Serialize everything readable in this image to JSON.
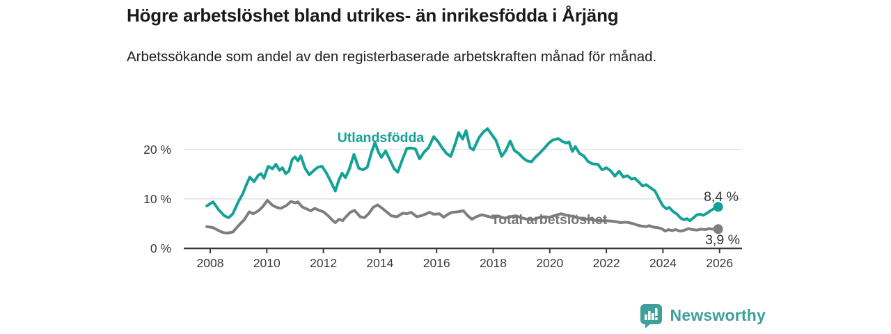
{
  "chart_data": {
    "type": "line",
    "title": "Högre arbetslöshet bland utrikes- än inrikesfödda i Årjäng",
    "subtitle": "Arbetssökande som andel av den registerbaserade arbetskraften månad för månad.",
    "xlabel": "",
    "ylabel": "",
    "unit": "%",
    "grid": "horizontal",
    "legend_position": "inline-labels",
    "x_axis": {
      "range": [
        2007.05,
        2026.8
      ],
      "ticks": [
        {
          "value": 2008,
          "label": "2008"
        },
        {
          "value": 2010,
          "label": "2010"
        },
        {
          "value": 2012,
          "label": "2012"
        },
        {
          "value": 2014,
          "label": "2014"
        },
        {
          "value": 2016,
          "label": "2016"
        },
        {
          "value": 2018,
          "label": "2018"
        },
        {
          "value": 2020,
          "label": "2020"
        },
        {
          "value": 2022,
          "label": "2022"
        },
        {
          "value": 2024,
          "label": "2024"
        },
        {
          "value": 2026,
          "label": "2026"
        }
      ]
    },
    "y_axis": {
      "range": [
        0,
        26.5
      ],
      "ticks": [
        {
          "value": 0,
          "label": "0 %"
        },
        {
          "value": 10,
          "label": "10 %"
        },
        {
          "value": 20,
          "label": "20 %"
        }
      ]
    },
    "series": [
      {
        "name": "Utlandsfödda",
        "color": "#14a296",
        "label_color": "#14a296",
        "end_label": "8,4 %",
        "end_value": 8.4,
        "points": [
          [
            2007.88,
            8.6
          ],
          [
            2008.1,
            9.4
          ],
          [
            2008.3,
            7.8
          ],
          [
            2008.5,
            6.6
          ],
          [
            2008.65,
            6.2
          ],
          [
            2008.8,
            7.0
          ],
          [
            2009.0,
            9.5
          ],
          [
            2009.15,
            11.0
          ],
          [
            2009.28,
            12.9
          ],
          [
            2009.4,
            14.4
          ],
          [
            2009.55,
            13.5
          ],
          [
            2009.7,
            14.8
          ],
          [
            2009.8,
            15.1
          ],
          [
            2009.9,
            14.2
          ],
          [
            2010.05,
            16.6
          ],
          [
            2010.2,
            16.1
          ],
          [
            2010.32,
            17.0
          ],
          [
            2010.45,
            15.8
          ],
          [
            2010.55,
            16.3
          ],
          [
            2010.67,
            15.1
          ],
          [
            2010.78,
            15.6
          ],
          [
            2010.9,
            18.0
          ],
          [
            2011.0,
            18.5
          ],
          [
            2011.1,
            17.7
          ],
          [
            2011.2,
            18.7
          ],
          [
            2011.35,
            16.2
          ],
          [
            2011.5,
            14.9
          ],
          [
            2011.65,
            15.7
          ],
          [
            2011.8,
            16.4
          ],
          [
            2011.95,
            16.6
          ],
          [
            2012.1,
            15.3
          ],
          [
            2012.27,
            13.4
          ],
          [
            2012.42,
            11.6
          ],
          [
            2012.55,
            13.9
          ],
          [
            2012.66,
            15.2
          ],
          [
            2012.78,
            14.3
          ],
          [
            2012.92,
            16.1
          ],
          [
            2013.08,
            19.0
          ],
          [
            2013.25,
            16.2
          ],
          [
            2013.4,
            15.9
          ],
          [
            2013.55,
            16.4
          ],
          [
            2013.7,
            19.4
          ],
          [
            2013.82,
            21.4
          ],
          [
            2013.95,
            19.4
          ],
          [
            2014.05,
            18.4
          ],
          [
            2014.2,
            19.7
          ],
          [
            2014.35,
            17.9
          ],
          [
            2014.5,
            16.1
          ],
          [
            2014.63,
            15.4
          ],
          [
            2014.8,
            18.1
          ],
          [
            2014.95,
            20.2
          ],
          [
            2015.1,
            20.3
          ],
          [
            2015.25,
            20.1
          ],
          [
            2015.4,
            18.1
          ],
          [
            2015.55,
            19.4
          ],
          [
            2015.72,
            20.4
          ],
          [
            2015.9,
            22.6
          ],
          [
            2016.05,
            21.6
          ],
          [
            2016.2,
            20.3
          ],
          [
            2016.35,
            19.2
          ],
          [
            2016.5,
            18.6
          ],
          [
            2016.65,
            21.0
          ],
          [
            2016.78,
            23.4
          ],
          [
            2016.92,
            22.1
          ],
          [
            2017.04,
            23.8
          ],
          [
            2017.18,
            20.4
          ],
          [
            2017.3,
            19.9
          ],
          [
            2017.5,
            22.4
          ],
          [
            2017.65,
            23.5
          ],
          [
            2017.8,
            24.2
          ],
          [
            2017.95,
            23.0
          ],
          [
            2018.1,
            21.8
          ],
          [
            2018.3,
            18.6
          ],
          [
            2018.45,
            19.8
          ],
          [
            2018.6,
            21.7
          ],
          [
            2018.75,
            19.8
          ],
          [
            2018.9,
            19.2
          ],
          [
            2019.05,
            18.3
          ],
          [
            2019.2,
            17.7
          ],
          [
            2019.35,
            17.5
          ],
          [
            2019.5,
            18.5
          ],
          [
            2019.65,
            19.3
          ],
          [
            2019.8,
            20.2
          ],
          [
            2019.95,
            21.2
          ],
          [
            2020.1,
            21.9
          ],
          [
            2020.3,
            22.2
          ],
          [
            2020.45,
            21.6
          ],
          [
            2020.58,
            21.3
          ],
          [
            2020.68,
            21.5
          ],
          [
            2020.8,
            19.6
          ],
          [
            2020.9,
            20.6
          ],
          [
            2021.05,
            19.2
          ],
          [
            2021.2,
            18.7
          ],
          [
            2021.35,
            17.6
          ],
          [
            2021.5,
            17.1
          ],
          [
            2021.7,
            17.0
          ],
          [
            2021.85,
            15.9
          ],
          [
            2022.0,
            16.3
          ],
          [
            2022.15,
            15.7
          ],
          [
            2022.3,
            14.6
          ],
          [
            2022.45,
            15.6
          ],
          [
            2022.6,
            14.4
          ],
          [
            2022.74,
            14.7
          ],
          [
            2022.9,
            14.0
          ],
          [
            2023.0,
            14.2
          ],
          [
            2023.15,
            13.4
          ],
          [
            2023.28,
            12.6
          ],
          [
            2023.4,
            12.9
          ],
          [
            2023.55,
            12.3
          ],
          [
            2023.72,
            11.6
          ],
          [
            2023.88,
            9.8
          ],
          [
            2024.0,
            8.6
          ],
          [
            2024.12,
            8.0
          ],
          [
            2024.22,
            8.3
          ],
          [
            2024.35,
            7.5
          ],
          [
            2024.5,
            6.9
          ],
          [
            2024.63,
            6.1
          ],
          [
            2024.75,
            5.8
          ],
          [
            2024.85,
            6.0
          ],
          [
            2024.95,
            5.6
          ],
          [
            2025.08,
            6.2
          ],
          [
            2025.2,
            6.8
          ],
          [
            2025.32,
            6.9
          ],
          [
            2025.42,
            6.7
          ],
          [
            2025.55,
            7.1
          ],
          [
            2025.7,
            7.7
          ],
          [
            2025.85,
            8.2
          ],
          [
            2025.95,
            8.4
          ]
        ]
      },
      {
        "name": "Total arbetslöshet",
        "color": "#7e7e7e",
        "label_color": "#767676",
        "end_label": "3,9 %",
        "end_value": 3.9,
        "points": [
          [
            2007.88,
            4.4
          ],
          [
            2008.1,
            4.2
          ],
          [
            2008.3,
            3.6
          ],
          [
            2008.45,
            3.2
          ],
          [
            2008.6,
            3.1
          ],
          [
            2008.8,
            3.3
          ],
          [
            2009.0,
            4.6
          ],
          [
            2009.2,
            5.8
          ],
          [
            2009.38,
            7.4
          ],
          [
            2009.52,
            7.0
          ],
          [
            2009.7,
            7.6
          ],
          [
            2009.85,
            8.4
          ],
          [
            2010.02,
            9.7
          ],
          [
            2010.2,
            8.7
          ],
          [
            2010.35,
            8.3
          ],
          [
            2010.5,
            8.1
          ],
          [
            2010.7,
            8.7
          ],
          [
            2010.85,
            9.5
          ],
          [
            2011.0,
            9.2
          ],
          [
            2011.1,
            9.4
          ],
          [
            2011.25,
            8.4
          ],
          [
            2011.4,
            8.0
          ],
          [
            2011.55,
            7.6
          ],
          [
            2011.7,
            8.1
          ],
          [
            2011.85,
            7.7
          ],
          [
            2012.0,
            7.4
          ],
          [
            2012.15,
            6.7
          ],
          [
            2012.3,
            5.8
          ],
          [
            2012.42,
            5.2
          ],
          [
            2012.55,
            5.9
          ],
          [
            2012.68,
            5.6
          ],
          [
            2012.8,
            6.4
          ],
          [
            2012.95,
            7.3
          ],
          [
            2013.1,
            7.7
          ],
          [
            2013.3,
            6.4
          ],
          [
            2013.45,
            6.2
          ],
          [
            2013.6,
            7.0
          ],
          [
            2013.76,
            8.3
          ],
          [
            2013.92,
            8.8
          ],
          [
            2014.1,
            8.0
          ],
          [
            2014.25,
            7.3
          ],
          [
            2014.4,
            6.6
          ],
          [
            2014.6,
            6.4
          ],
          [
            2014.8,
            7.1
          ],
          [
            2014.95,
            7.0
          ],
          [
            2015.1,
            7.3
          ],
          [
            2015.3,
            6.4
          ],
          [
            2015.45,
            6.6
          ],
          [
            2015.6,
            6.9
          ],
          [
            2015.75,
            7.3
          ],
          [
            2015.9,
            6.9
          ],
          [
            2016.1,
            7.0
          ],
          [
            2016.25,
            6.3
          ],
          [
            2016.4,
            6.9
          ],
          [
            2016.55,
            7.3
          ],
          [
            2016.75,
            7.4
          ],
          [
            2016.95,
            7.6
          ],
          [
            2017.1,
            6.6
          ],
          [
            2017.25,
            5.9
          ],
          [
            2017.4,
            6.4
          ],
          [
            2017.6,
            6.8
          ],
          [
            2017.8,
            6.5
          ],
          [
            2018.0,
            6.2
          ],
          [
            2018.2,
            6.5
          ],
          [
            2018.4,
            6.1
          ],
          [
            2018.6,
            6.4
          ],
          [
            2018.8,
            6.6
          ],
          [
            2019.0,
            6.2
          ],
          [
            2019.2,
            5.9
          ],
          [
            2019.4,
            5.8
          ],
          [
            2019.6,
            6.2
          ],
          [
            2019.8,
            6.4
          ],
          [
            2020.0,
            6.3
          ],
          [
            2020.2,
            6.7
          ],
          [
            2020.4,
            7.0
          ],
          [
            2020.6,
            6.7
          ],
          [
            2020.8,
            6.5
          ],
          [
            2021.0,
            6.2
          ],
          [
            2021.2,
            6.0
          ],
          [
            2021.4,
            5.9
          ],
          [
            2021.6,
            5.7
          ],
          [
            2021.8,
            5.6
          ],
          [
            2022.0,
            5.6
          ],
          [
            2022.2,
            5.5
          ],
          [
            2022.35,
            5.4
          ],
          [
            2022.5,
            5.2
          ],
          [
            2022.65,
            5.3
          ],
          [
            2022.8,
            5.2
          ],
          [
            2022.95,
            5.0
          ],
          [
            2023.1,
            4.7
          ],
          [
            2023.25,
            4.5
          ],
          [
            2023.4,
            4.4
          ],
          [
            2023.52,
            4.6
          ],
          [
            2023.65,
            4.3
          ],
          [
            2023.8,
            4.2
          ],
          [
            2023.95,
            4.0
          ],
          [
            2024.08,
            3.5
          ],
          [
            2024.2,
            3.8
          ],
          [
            2024.32,
            3.6
          ],
          [
            2024.45,
            3.8
          ],
          [
            2024.6,
            3.5
          ],
          [
            2024.72,
            3.6
          ],
          [
            2024.9,
            4.0
          ],
          [
            2025.05,
            3.8
          ],
          [
            2025.2,
            3.7
          ],
          [
            2025.35,
            3.9
          ],
          [
            2025.5,
            3.8
          ],
          [
            2025.62,
            4.0
          ],
          [
            2025.75,
            3.9
          ],
          [
            2025.95,
            3.9
          ]
        ]
      }
    ]
  },
  "footer": {
    "brand": "Newsworthy",
    "brand_color": "#3f9f9a"
  }
}
